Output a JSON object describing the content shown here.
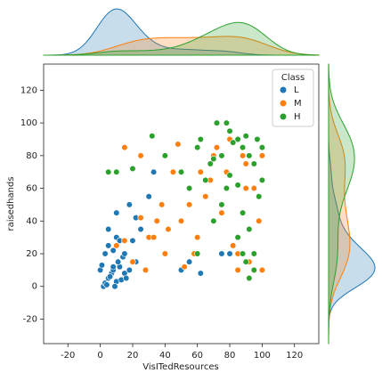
{
  "chart_data": {
    "type": "scatter",
    "x_label": "VisITedResources",
    "y_label": "raisedhands",
    "xlim": [
      -35,
      135
    ],
    "ylim": [
      -35,
      136
    ],
    "xticks": [
      -20,
      0,
      20,
      40,
      60,
      80,
      100,
      120
    ],
    "yticks": [
      -20,
      0,
      20,
      40,
      60,
      80,
      100,
      120
    ],
    "legend_title": "Class",
    "legend_position": "upper right",
    "marginal": "kde",
    "series": [
      {
        "name": "L",
        "color": "#1f77b4",
        "x": [
          2,
          3,
          5,
          7,
          8,
          10,
          12,
          0,
          4,
          6,
          9,
          11,
          13,
          15,
          1,
          3,
          5,
          8,
          10,
          14,
          16,
          18,
          20,
          22,
          25,
          5,
          10,
          12,
          15,
          8,
          18,
          22,
          30,
          33,
          40,
          50,
          55,
          62,
          75,
          80
        ],
        "values": [
          0,
          2,
          5,
          8,
          10,
          3,
          12,
          10,
          1,
          6,
          0,
          15,
          4,
          8,
          13,
          20,
          25,
          22,
          30,
          18,
          5,
          10,
          28,
          15,
          35,
          35,
          45,
          28,
          20,
          12,
          50,
          42,
          55,
          70,
          20,
          10,
          15,
          8,
          20,
          20
        ]
      },
      {
        "name": "M",
        "color": "#ff7f0e",
        "x": [
          10,
          15,
          20,
          25,
          30,
          35,
          40,
          45,
          50,
          55,
          60,
          65,
          70,
          75,
          80,
          85,
          90,
          95,
          100,
          20,
          28,
          33,
          42,
          48,
          58,
          68,
          72,
          78,
          82,
          88,
          92,
          98,
          15,
          25,
          38,
          52,
          62,
          85,
          90,
          100
        ],
        "values": [
          25,
          85,
          15,
          42,
          30,
          40,
          20,
          70,
          40,
          50,
          30,
          55,
          80,
          45,
          90,
          20,
          75,
          60,
          10,
          15,
          10,
          30,
          35,
          87,
          20,
          65,
          85,
          70,
          25,
          80,
          15,
          40,
          28,
          80,
          50,
          12,
          70,
          10,
          60,
          80
        ]
      },
      {
        "name": "H",
        "color": "#2ca02c",
        "x": [
          5,
          10,
          20,
          32,
          40,
          50,
          55,
          60,
          62,
          65,
          68,
          70,
          72,
          75,
          78,
          80,
          82,
          85,
          88,
          90,
          92,
          95,
          97,
          100,
          85,
          88,
          90,
          92,
          95,
          78,
          80,
          98,
          100,
          60,
          70,
          75,
          85,
          88,
          95,
          92
        ],
        "values": [
          70,
          70,
          72,
          92,
          80,
          70,
          60,
          85,
          90,
          65,
          75,
          78,
          100,
          80,
          100,
          95,
          88,
          90,
          85,
          92,
          80,
          75,
          90,
          85,
          30,
          20,
          15,
          35,
          10,
          60,
          68,
          55,
          65,
          20,
          40,
          50,
          62,
          45,
          20,
          5
        ]
      }
    ]
  }
}
